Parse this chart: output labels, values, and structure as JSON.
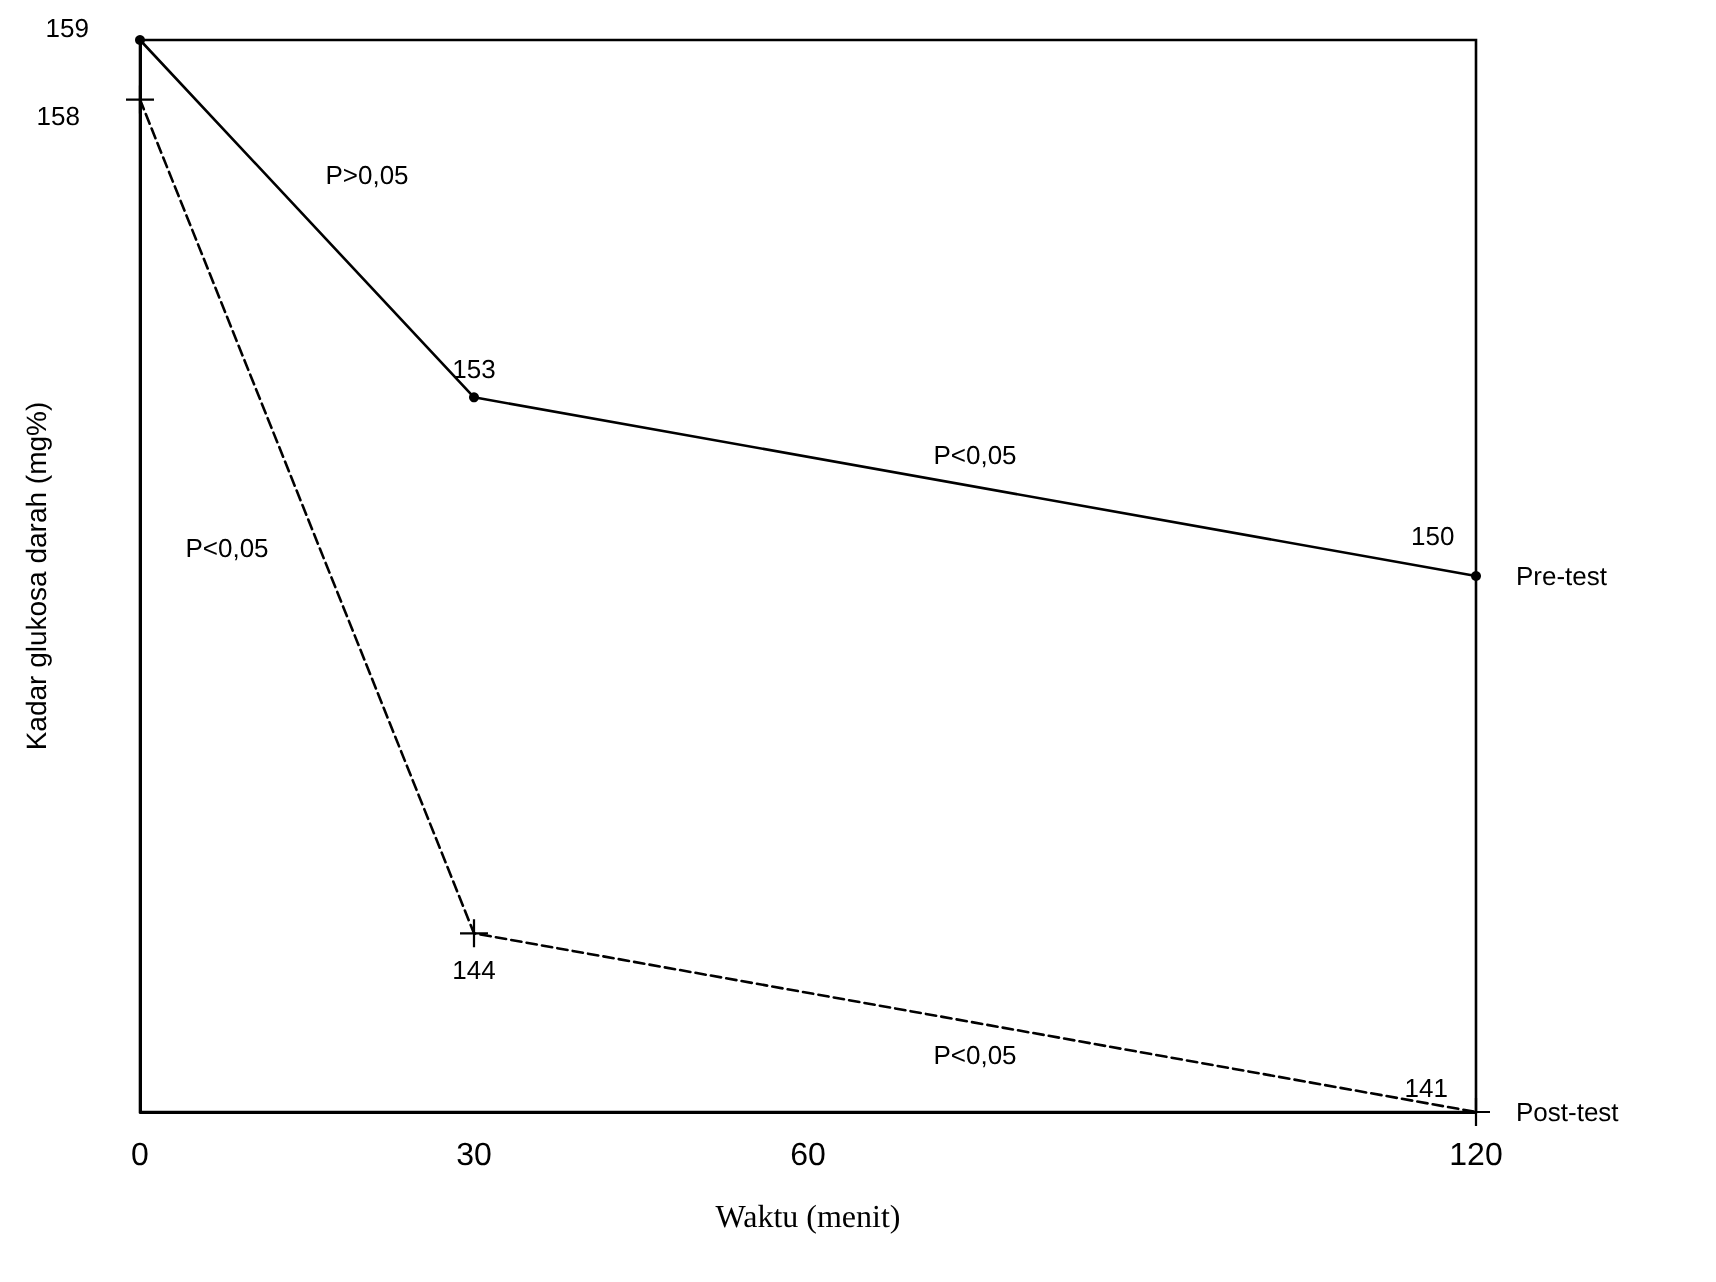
{
  "chart_data": {
    "type": "line",
    "xlabel": "Waktu (menit)",
    "ylabel": "Kadar glukosa darah (mg%)",
    "x": [
      0,
      30,
      120
    ],
    "xlim": [
      0,
      120
    ],
    "xticks": [
      0,
      30,
      60,
      120
    ],
    "series": [
      {
        "name": "Pre-test",
        "color": "#000000",
        "values": [
          159,
          153,
          150
        ],
        "line_style": "solid",
        "marker": "circle"
      },
      {
        "name": "Post-test",
        "color": "#000000",
        "values": [
          158,
          144,
          141
        ],
        "line_style": "dashed",
        "marker": "cross"
      }
    ],
    "annotations": [
      "P>0,05",
      "P<0,05",
      "P<0,05",
      "P<0,05"
    ],
    "data_labels": true,
    "grid": false,
    "legend": false,
    "tick_labels": "x"
  }
}
